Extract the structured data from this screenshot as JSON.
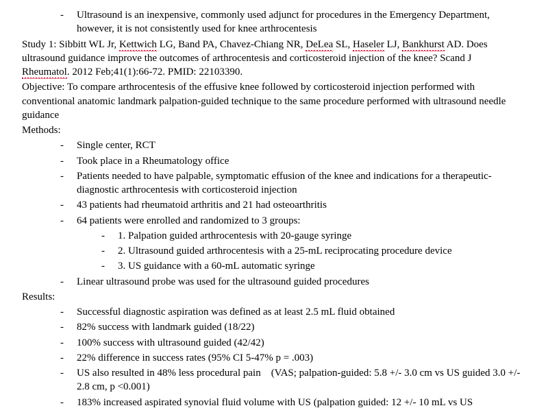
{
  "intro_bullet": "Ultrasound is an inexpensive, commonly used adjunct for procedures in the Emergency Department, however, it is not consistently used for knee arthrocentesis",
  "study_label": "Study 1: ",
  "authors_1": "Sibbitt WL Jr, ",
  "author_kettwich": "Kettwich",
  "authors_2": " LG, Band PA, Chavez-Chiang NR, ",
  "author_delea": "DeLea",
  "authors_3": " SL, ",
  "author_haseler": "Haseler",
  "authors_4": " LJ, ",
  "author_bankhurst": "Bankhurst",
  "authors_5": " AD. Does ultrasound guidance improve the outcomes of arthrocentesis and corticosteroid injection of the knee? Scand J ",
  "journal": "Rheumatol",
  "citation_tail": ". 2012 Feb;41(1):66-72. PMID: 22103390.",
  "objective": "Objective: To compare arthrocentesis of the effusive knee followed by corticosteroid injection performed with conventional anatomic landmark palpation-guided technique to the same procedure performed with ultrasound needle guidance",
  "methods_label": "Methods:",
  "methods": [
    "Single center, RCT",
    "Took place in a Rheumatology office",
    "Patients needed to have palpable, symptomatic effusion of the knee and indications for a therapeutic-diagnostic arthrocentesis with corticosteroid injection",
    "43 patients had rheumatoid arthritis and 21 had osteoarthritis",
    "64 patients were enrolled and randomized to 3 groups:"
  ],
  "groups": [
    "1. Palpation guided arthrocentesis with 20-gauge syringe",
    "2. Ultrasound guided arthrocentesis with a 25-mL reciprocating procedure device",
    "3. US guidance with a 60-mL automatic syringe"
  ],
  "methods_tail": "Linear ultrasound probe was used for the ultrasound guided procedures",
  "results_label": "Results:",
  "results": [
    "Successful diagnostic aspiration was defined as at least 2.5 mL fluid obtained",
    "82% success with landmark guided (18/22)",
    "100% success with ultrasound guided (42/42)",
    "22% difference in success rates (95% CI 5-47% p = .003)",
    "US also resulted in 48% less procedural pain    (VAS; palpation-guided: 5.8 +/- 3.0 cm vs US guided 3.0 +/- 2.8 cm, p <0.001)",
    "183% increased aspirated synovial fluid volume with US (palpation guided: 12 +/- 10 mL vs US"
  ],
  "styling": {
    "font_family": "Times New Roman",
    "font_size_pt": 12,
    "text_color": "#000000",
    "background_color": "#ffffff",
    "squiggle_color": "#d4002a"
  }
}
